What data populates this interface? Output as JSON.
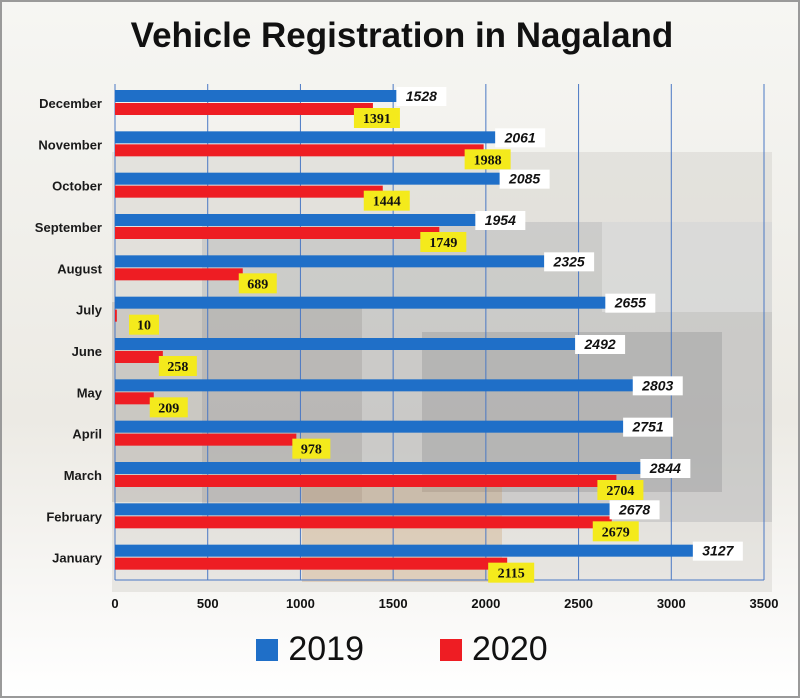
{
  "chart_data": {
    "type": "bar",
    "orientation": "horizontal",
    "title": "Vehicle Registration in Nagaland",
    "categories": [
      "January",
      "February",
      "March",
      "April",
      "May",
      "June",
      "July",
      "August",
      "September",
      "October",
      "November",
      "December"
    ],
    "series": [
      {
        "name": "2019",
        "color": "#1f6fc8",
        "values": [
          3127,
          2678,
          2844,
          2751,
          2803,
          2492,
          2655,
          2325,
          1954,
          2085,
          2061,
          1528
        ]
      },
      {
        "name": "2020",
        "color": "#ee1d23",
        "values": [
          2115,
          2679,
          2704,
          978,
          209,
          258,
          10,
          689,
          1749,
          1444,
          1988,
          1391
        ]
      }
    ],
    "xlim": [
      0,
      3500
    ],
    "xticks": [
      0,
      500,
      1000,
      1500,
      2000,
      2500,
      3000,
      3500
    ],
    "grid": "vertical",
    "legend": "bottom",
    "label_colors": {
      "2019": "#ffffff",
      "2020": "#f4ea1c"
    }
  }
}
